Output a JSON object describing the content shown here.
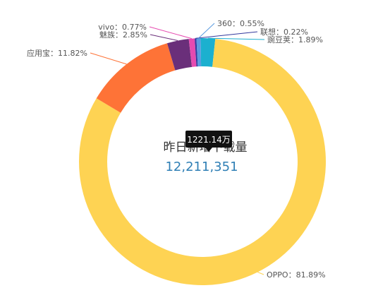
{
  "chart_data": {
    "type": "pie",
    "donut": true,
    "center_title": "昨日新增下载量",
    "center_value": "12,211,351",
    "tooltip": "1221.14万",
    "slices": [
      {
        "name": "OPPO",
        "label": "OPPO：81.89%",
        "value": 81.89,
        "color": "#fed353"
      },
      {
        "name": "应用宝",
        "label": "应用宝：11.82%",
        "value": 11.82,
        "color": "#fe7337"
      },
      {
        "name": "魅族",
        "label": "魅族：2.85%",
        "value": 2.85,
        "color": "#6a2f7a"
      },
      {
        "name": "vivo",
        "label": "vivo：0.77%",
        "value": 0.77,
        "color": "#e64bb0"
      },
      {
        "name": "360",
        "label": "360：0.55%",
        "value": 0.55,
        "color": "#5a9be0"
      },
      {
        "name": "联想",
        "label": "联想：0.22%",
        "value": 0.22,
        "color": "#333a9e"
      },
      {
        "name": "豌豆荚",
        "label": "豌豆荚：1.89%",
        "value": 1.89,
        "color": "#1cb0cf"
      }
    ]
  }
}
